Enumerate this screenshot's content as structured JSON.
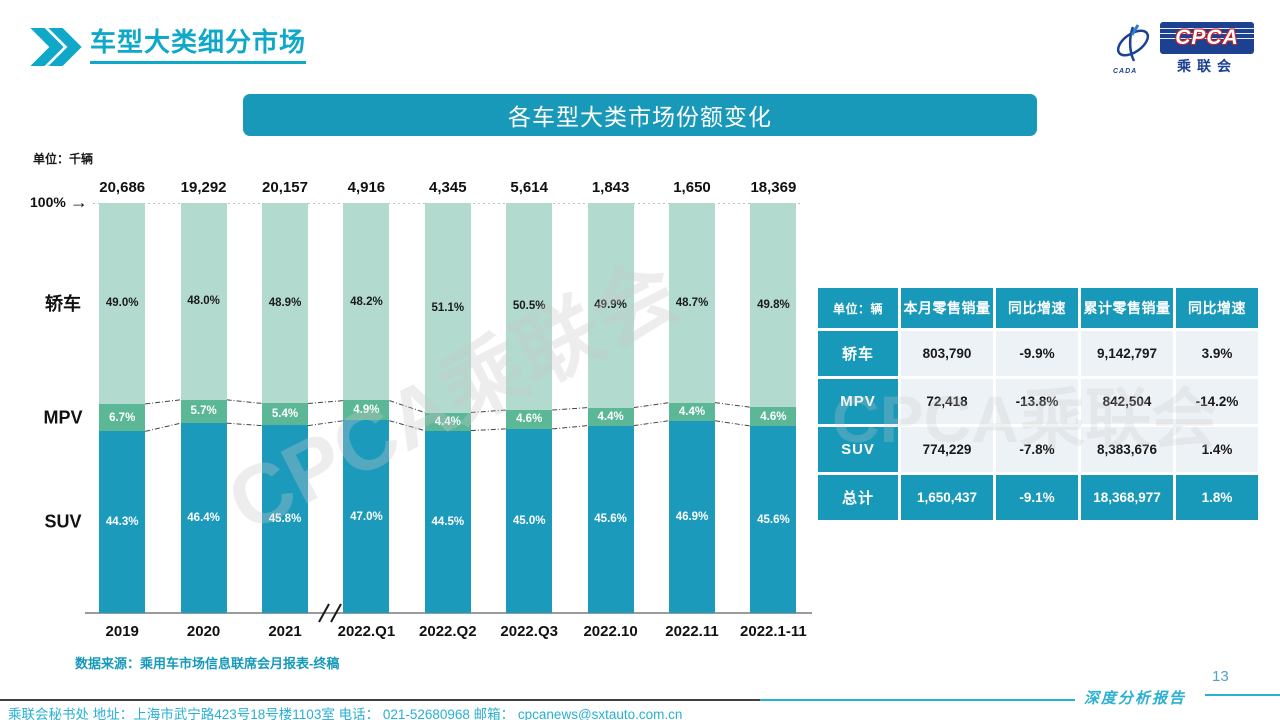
{
  "header": {
    "title": "车型大类细分市场"
  },
  "logo": {
    "cpca": "CPCA",
    "cn": "乘联会",
    "cada": "CADA"
  },
  "banner": {
    "title": "各车型大类市场份额变化"
  },
  "chart": {
    "unit_label": "单位：千辆",
    "axis_100_label": "100%",
    "watermark": "CPCA乘联会",
    "source": "数据来源：乘用车市场信息联席会月报表-终稿"
  },
  "icons": {
    "arrow_right": "→",
    "chevrons": "double-chevron-right"
  },
  "chart_data": {
    "type": "bar",
    "subtype": "stacked-100-percent",
    "categories": [
      "2019",
      "2020",
      "2021",
      "2022.Q1",
      "2022.Q2",
      "2022.Q3",
      "2022.10",
      "2022.11",
      "2022.1-11"
    ],
    "totals_above_bars": [
      "20,686",
      "19,292",
      "20,157",
      "4,916",
      "4,345",
      "5,614",
      "1,843",
      "1,650",
      "18,369"
    ],
    "series": [
      {
        "name": "轿车",
        "color": "#b2dace",
        "label_color": "#1a1a1a",
        "values": [
          49.0,
          48.0,
          48.9,
          48.2,
          51.1,
          50.5,
          49.9,
          48.7,
          49.8
        ]
      },
      {
        "name": "MPV",
        "color": "#5bb795",
        "label_color": "#ffffff",
        "values": [
          6.7,
          5.7,
          5.4,
          4.9,
          4.4,
          4.6,
          4.4,
          4.4,
          4.6
        ]
      },
      {
        "name": "SUV",
        "color": "#1b9abc",
        "label_color": "#ffffff",
        "values": [
          44.3,
          46.4,
          45.8,
          47.0,
          44.5,
          45.0,
          45.6,
          46.9,
          45.6
        ]
      }
    ],
    "title": "各车型大类市场份额变化",
    "ylabel": "",
    "xlabel": "",
    "ylim": [
      0,
      100
    ],
    "grid": false,
    "legend_position": "left-row-labels",
    "axis_break_after": "2021",
    "top_axis_label": "100%"
  },
  "table": {
    "unit_header": "单位：辆",
    "columns": [
      "本月零售销量",
      "同比增速",
      "累计零售销量",
      "同比增速"
    ],
    "rows": [
      {
        "label": "轿车",
        "cells": [
          "803,790",
          "-9.9%",
          "9,142,797",
          "3.9%"
        ],
        "highlight": false
      },
      {
        "label": "MPV",
        "cells": [
          "72,418",
          "-13.8%",
          "842,504",
          "-14.2%"
        ],
        "highlight": false
      },
      {
        "label": "SUV",
        "cells": [
          "774,229",
          "-7.8%",
          "8,383,676",
          "1.4%"
        ],
        "highlight": false
      },
      {
        "label": "总计",
        "cells": [
          "1,650,437",
          "-9.1%",
          "18,368,977",
          "1.8%"
        ],
        "highlight": true
      }
    ],
    "watermark": "CPCA乘联会"
  },
  "footer": {
    "contact": "乘联会秘书处  地址：上海市武宁路423号18号楼1103室 电话： 021-52680968   邮箱： cpcanews@sxtauto.com.cn",
    "report_label": "深度分析报告",
    "page": "13"
  },
  "colors": {
    "accent_cyan": "#10a8c9",
    "teal": "#1899ba",
    "bar_suv": "#1b9abc",
    "bar_mpv": "#5bb795",
    "bar_sedan": "#b2dace",
    "logo_navy": "#1b4190",
    "logo_red": "#cc2027",
    "footer_teal": "#2ab0d2"
  }
}
